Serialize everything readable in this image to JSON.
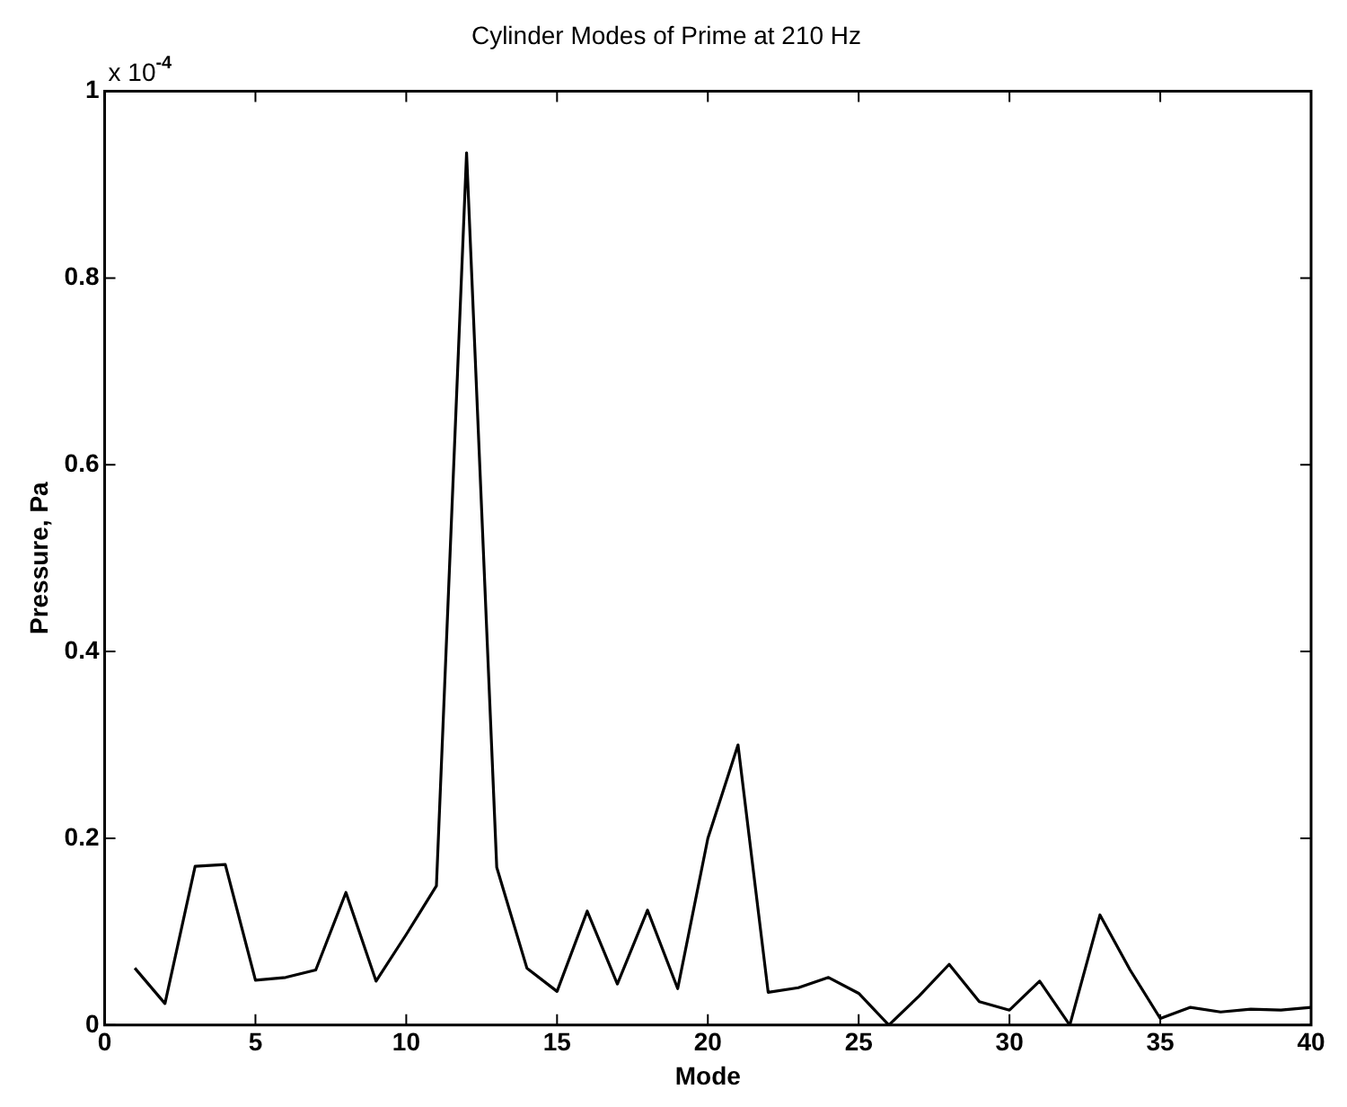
{
  "chart_data": {
    "type": "line",
    "title": "Cylinder Modes of Prime at 210 Hz",
    "xlabel": "Mode",
    "ylabel": "Pressure, Pa",
    "annotations": [
      "x 10$^{-4}$"
    ],
    "x": [
      1,
      2,
      3,
      4,
      5,
      6,
      7,
      8,
      9,
      10,
      11,
      12,
      13,
      14,
      15,
      16,
      17,
      18,
      19,
      20,
      21,
      22,
      23,
      24,
      25,
      26,
      27,
      28,
      29,
      30,
      31,
      32,
      33,
      34,
      35,
      36,
      37,
      38,
      39,
      40
    ],
    "series": [
      {
        "color": "#000000",
        "values": [
          0.061,
          0.023,
          0.17,
          0.172,
          0.048,
          0.051,
          0.059,
          0.142,
          0.047,
          0.097,
          0.149,
          0.934,
          0.169,
          0.061,
          0.036,
          0.122,
          0.044,
          0.123,
          0.039,
          0.2,
          0.3,
          0.035,
          0.04,
          0.051,
          0.034,
          0.0,
          0.031,
          0.065,
          0.025,
          0.016,
          0.047,
          0.0,
          0.118,
          0.059,
          0.007,
          0.019,
          0.014,
          0.017,
          0.016,
          0.019
        ]
      }
    ],
    "xlim": [
      0,
      40
    ],
    "xticks": [
      0,
      5,
      10,
      15,
      20,
      25,
      30,
      35,
      40
    ],
    "ylim": [
      0,
      1
    ],
    "yticks": [
      0,
      0.2,
      0.4,
      0.6,
      0.8,
      1
    ],
    "grid": false,
    "legend": false,
    "marker": "none",
    "line_style": "solid"
  }
}
